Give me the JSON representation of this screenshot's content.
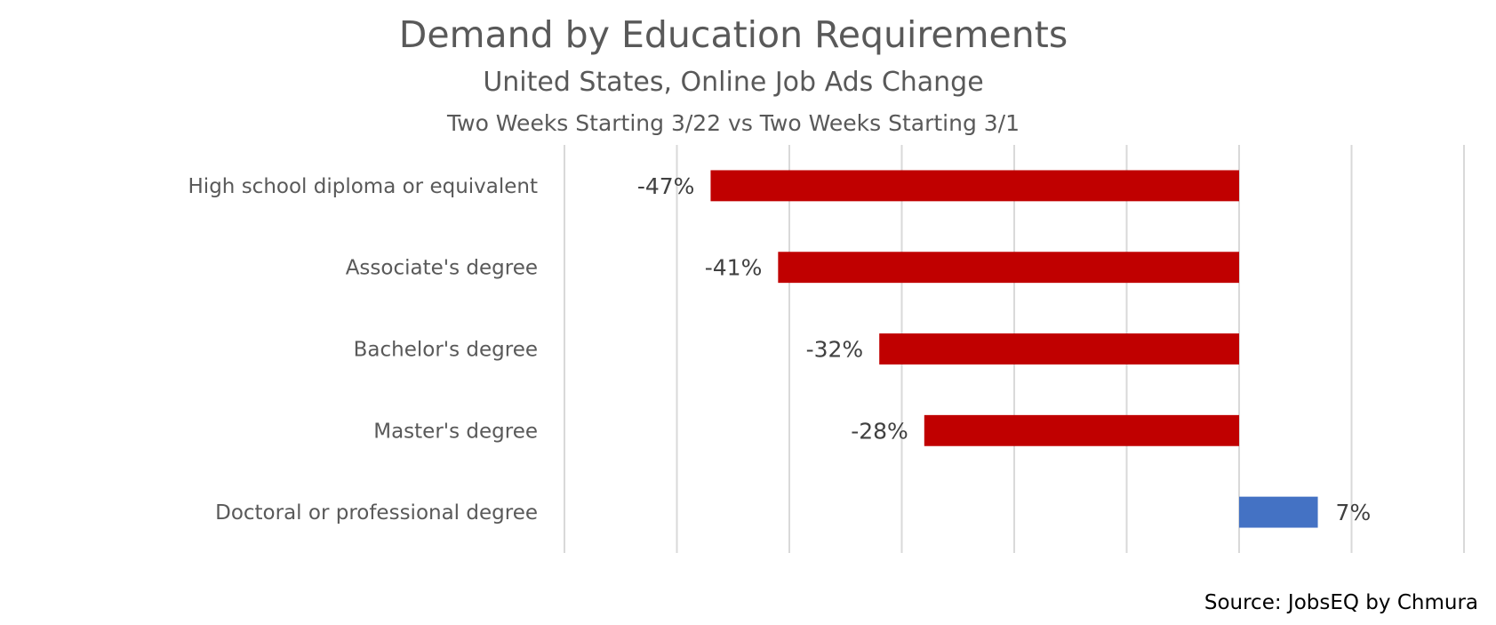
{
  "title": "Demand by Education Requirements",
  "subtitle": "United States, Online Job Ads Change",
  "subtitle2": "Two Weeks Starting 3/22 vs Two Weeks Starting 3/1",
  "source": "Source: JobsEQ by Chmura",
  "colors": {
    "negative": "#C00000",
    "positive": "#4472C4",
    "grid": "#D9D9D9"
  },
  "chart_data": {
    "type": "bar",
    "orientation": "horizontal",
    "categories": [
      "High school diploma or equivalent",
      "Associate's degree",
      "Bachelor's degree",
      "Master's degree",
      "Doctoral or professional degree"
    ],
    "values": [
      -47,
      -41,
      -32,
      -28,
      7
    ],
    "data_labels": [
      "-47%",
      "-41%",
      "-32%",
      "-28%",
      "7%"
    ],
    "xlim": [
      -60,
      20
    ],
    "grid": true,
    "legend": "none"
  }
}
